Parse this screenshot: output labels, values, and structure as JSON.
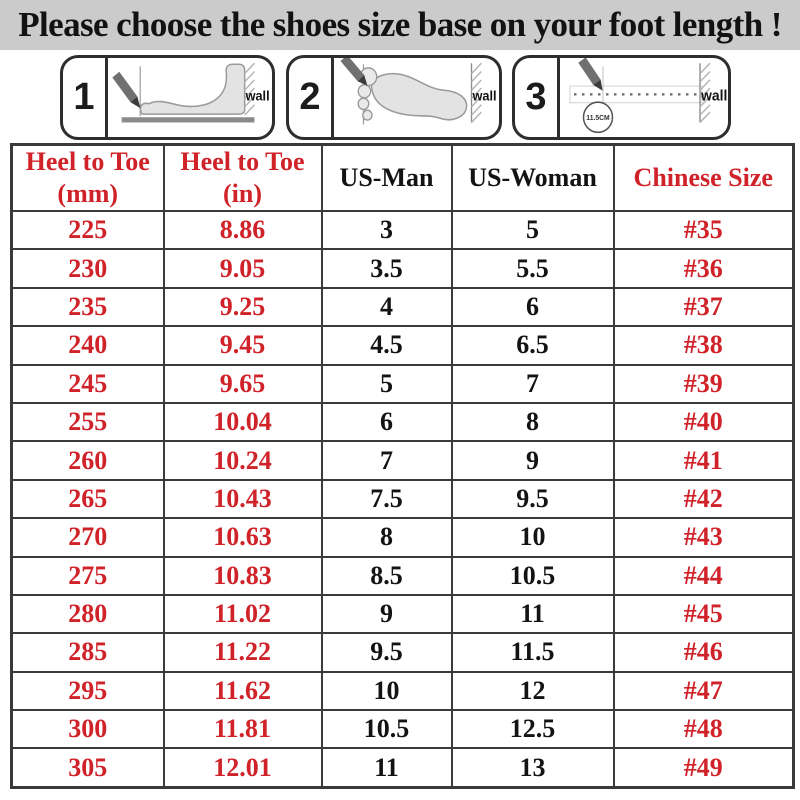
{
  "colors": {
    "title_bg": "#cbcbcb",
    "red": "#d02229",
    "black": "#131313",
    "border": "#3a3a3a",
    "panel_border": "#2e2e2e"
  },
  "title": "Please choose the shoes size base on your foot length !",
  "instructions": {
    "panels": [
      {
        "number": "1",
        "wall_label": "wall"
      },
      {
        "number": "2",
        "wall_label": "wall"
      },
      {
        "number": "3",
        "wall_label": "wall",
        "measure_label": "11.5CM"
      }
    ]
  },
  "table": {
    "headers": [
      "Heel to Toe\n(mm)",
      "Heel to Toe\n(in)",
      "US-Man",
      "US-Woman",
      "Chinese Size"
    ],
    "rows": [
      [
        "225",
        "8.86",
        "3",
        "5",
        "#35"
      ],
      [
        "230",
        "9.05",
        "3.5",
        "5.5",
        "#36"
      ],
      [
        "235",
        "9.25",
        "4",
        "6",
        "#37"
      ],
      [
        "240",
        "9.45",
        "4.5",
        "6.5",
        "#38"
      ],
      [
        "245",
        "9.65",
        "5",
        "7",
        "#39"
      ],
      [
        "255",
        "10.04",
        "6",
        "8",
        "#40"
      ],
      [
        "260",
        "10.24",
        "7",
        "9",
        "#41"
      ],
      [
        "265",
        "10.43",
        "7.5",
        "9.5",
        "#42"
      ],
      [
        "270",
        "10.63",
        "8",
        "10",
        "#43"
      ],
      [
        "275",
        "10.83",
        "8.5",
        "10.5",
        "#44"
      ],
      [
        "280",
        "11.02",
        "9",
        "11",
        "#45"
      ],
      [
        "285",
        "11.22",
        "9.5",
        "11.5",
        "#46"
      ],
      [
        "295",
        "11.62",
        "10",
        "12",
        "#47"
      ],
      [
        "300",
        "11.81",
        "10.5",
        "12.5",
        "#48"
      ],
      [
        "305",
        "12.01",
        "11",
        "13",
        "#49"
      ]
    ]
  }
}
